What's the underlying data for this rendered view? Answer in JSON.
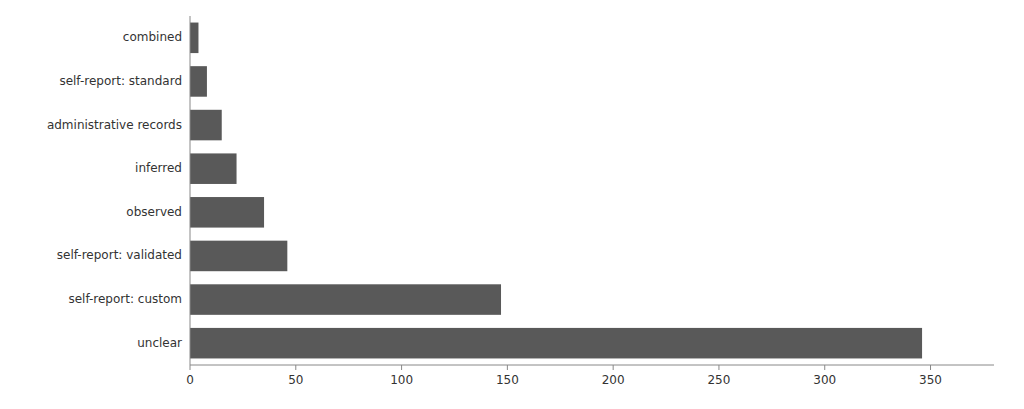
{
  "chart_data": {
    "type": "bar",
    "orientation": "horizontal",
    "categories": [
      "unclear",
      "self-report: custom",
      "self-report: validated",
      "observed",
      "inferred",
      "administrative records",
      "self-report: standard",
      "combined"
    ],
    "values": [
      346,
      147,
      46,
      35,
      22,
      15,
      8,
      4
    ],
    "color": "#595959",
    "xlim": [
      0,
      380
    ],
    "xticks": [
      0,
      50,
      100,
      150,
      200,
      250,
      300,
      350
    ],
    "grid": false
  }
}
